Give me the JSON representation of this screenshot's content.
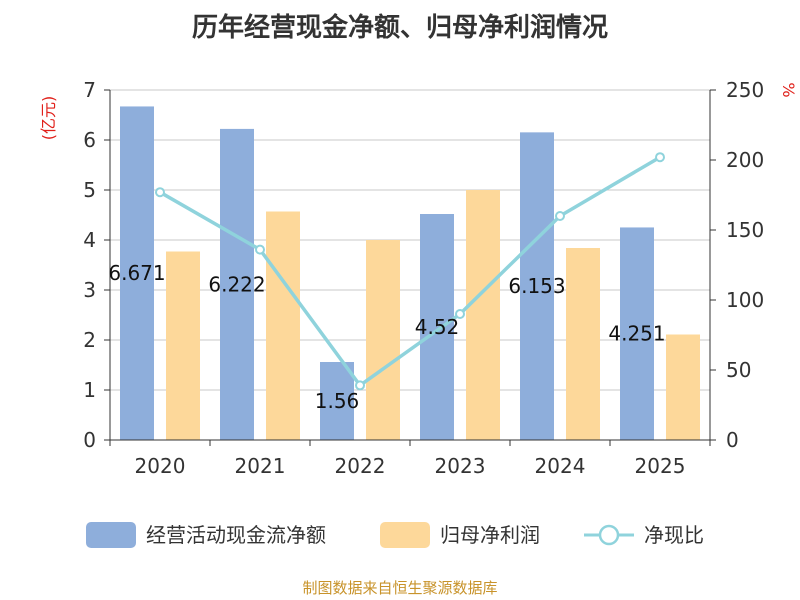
{
  "chart_data": {
    "type": "bar",
    "title": "历年经营现金净额、归母净利润情况",
    "categories": [
      "2020",
      "2021",
      "2022",
      "2023",
      "2024",
      "2025"
    ],
    "left_axis": {
      "unit": "(亿元)",
      "ylim": [
        0,
        7
      ],
      "ticks": [
        0,
        1,
        2,
        3,
        4,
        5,
        6,
        7
      ]
    },
    "right_axis": {
      "unit": "%",
      "ylim": [
        0,
        250
      ],
      "ticks": [
        0,
        50,
        100,
        150,
        200,
        250
      ]
    },
    "series": [
      {
        "name": "经营活动现金流净额",
        "type": "bar",
        "axis": "left",
        "color": "#8eaedb",
        "values": [
          6.671,
          6.222,
          1.56,
          4.52,
          6.153,
          4.251
        ],
        "labels": [
          "6.671",
          "6.222",
          "1.56",
          "4.52",
          "6.153",
          "4.251"
        ]
      },
      {
        "name": "归母净利润",
        "type": "bar",
        "axis": "left",
        "color": "#fdd89a",
        "values": [
          3.77,
          4.57,
          4.0,
          5.0,
          3.84,
          2.11
        ]
      },
      {
        "name": "净现比",
        "type": "line",
        "axis": "right",
        "color": "#8fd3dc",
        "values": [
          177,
          136,
          39,
          90,
          160,
          202
        ]
      }
    ],
    "grid": true,
    "legend_position": "bottom",
    "source": "制图数据来自恒生聚源数据库"
  }
}
